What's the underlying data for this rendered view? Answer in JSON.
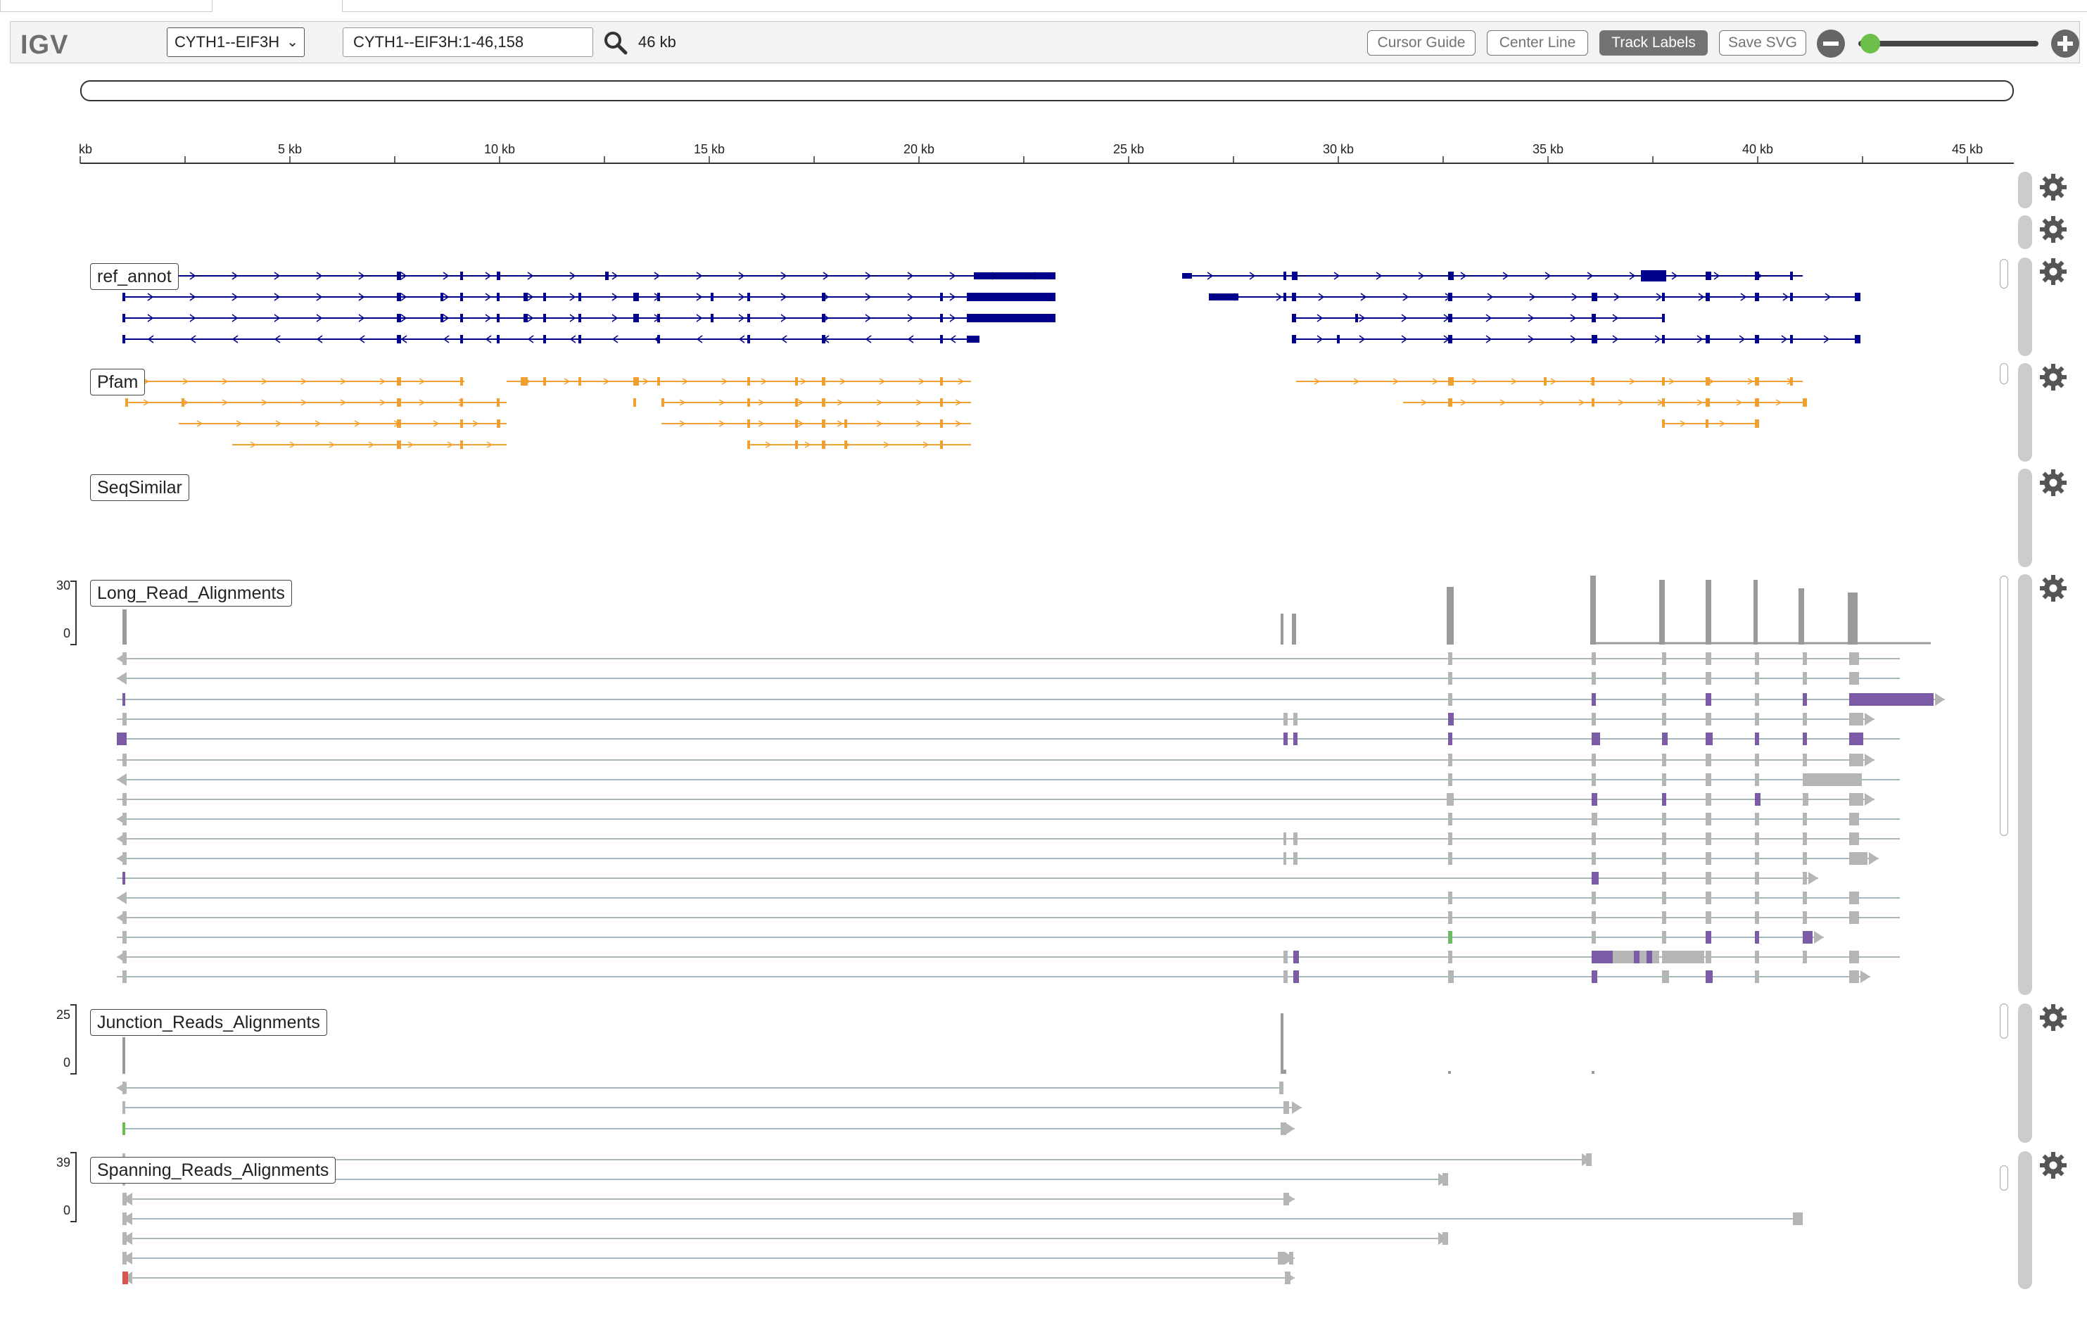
{
  "app": {
    "logo": "IGV"
  },
  "navbar": {
    "genome": "CYTH1--EIF3H",
    "locus": "CYTH1--EIF3H:1-46,158",
    "window_size": "46 kb",
    "buttons": {
      "cursor_guide": "Cursor Guide",
      "center_line": "Center Line",
      "track_labels": "Track Labels",
      "save_svg": "Save SVG"
    },
    "zoom_level": 0.02
  },
  "ruler": {
    "unit_label": "kb",
    "ticks": [
      "5 kb",
      "10 kb",
      "15 kb",
      "20 kb",
      "25 kb",
      "30 kb",
      "35 kb",
      "40 kb",
      "45 kb"
    ]
  },
  "tracks": [
    {
      "name": "ref_annot",
      "color": "#00008b"
    },
    {
      "name": "Pfam",
      "color": "#f0a030"
    },
    {
      "name": "SeqSimilar",
      "color": "#000000"
    },
    {
      "name": "Long_Read_Alignments",
      "range_max": "30",
      "range_min": "0"
    },
    {
      "name": "Junction_Reads_Alignments",
      "range_max": "25",
      "range_min": "0"
    },
    {
      "name": "Spanning_Reads_Alignments",
      "range_max": "39",
      "range_min": "0"
    }
  ],
  "colors": {
    "coverage": "#9a9a9a",
    "alignment": "#b5b5b5",
    "insertion": "#7b5aa6",
    "gene": "#00008b",
    "pfam": "#f0a030"
  },
  "icons": [
    "gear-icon",
    "search-icon",
    "zoom-out-icon",
    "zoom-in-icon",
    "chevron-down-icon"
  ]
}
